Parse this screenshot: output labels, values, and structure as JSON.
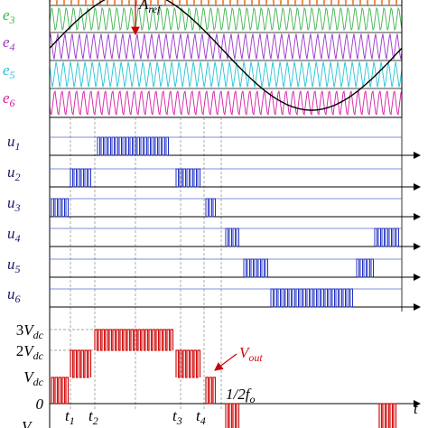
{
  "reference": {
    "base": "A",
    "sub": "ref"
  },
  "carriers": [
    {
      "base": "e",
      "sub": "3"
    },
    {
      "base": "e",
      "sub": "4"
    },
    {
      "base": "e",
      "sub": "5"
    },
    {
      "base": "e",
      "sub": "6"
    }
  ],
  "signals": [
    {
      "base": "u",
      "sub": "1"
    },
    {
      "base": "u",
      "sub": "2"
    },
    {
      "base": "u",
      "sub": "3"
    },
    {
      "base": "u",
      "sub": "4"
    },
    {
      "base": "u",
      "sub": "5"
    },
    {
      "base": "u",
      "sub": "6"
    }
  ],
  "output": {
    "base": "V",
    "sub": "out"
  },
  "levels": [
    {
      "coef": "3",
      "base": "V",
      "sub": "dc"
    },
    {
      "coef": "2",
      "base": "V",
      "sub": "dc"
    },
    {
      "base": "V",
      "sub": "dc"
    },
    {
      "base": "0"
    }
  ],
  "cut_label": "V",
  "times": [
    {
      "base": "t",
      "sub": "1"
    },
    {
      "base": "t",
      "sub": "2"
    },
    {
      "base": "t",
      "sub": "3"
    },
    {
      "base": "t",
      "sub": "4"
    }
  ],
  "half_period": {
    "base": "1/2f",
    "sub": "o"
  },
  "axis_label": "t"
}
